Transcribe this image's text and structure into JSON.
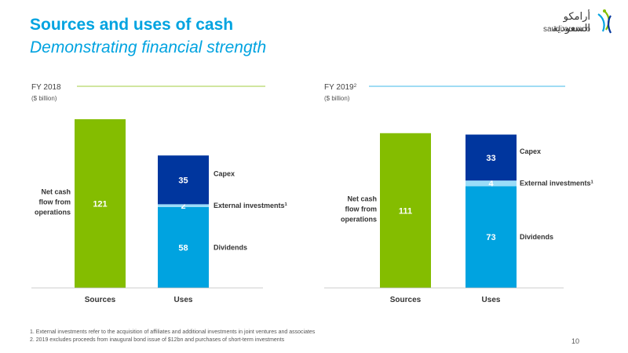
{
  "header": {
    "title": "Sources and uses of cash",
    "subtitle": "Demonstrating financial strength"
  },
  "logo": {
    "arabic": "أرامكو السعودية",
    "english": "saudi aramco"
  },
  "colors": {
    "sources": "#84bd00",
    "capex": "#00369e",
    "external": "#9adcf8",
    "dividends": "#00a3e0",
    "title": "#00a3e0",
    "green_line": "#84bd00",
    "blue_line": "#00a3e0"
  },
  "chart_data": [
    {
      "type": "bar",
      "stacked": true,
      "title": "FY 2018",
      "title_sup": "",
      "unit": "($ billion)",
      "categories": [
        "Sources",
        "Uses"
      ],
      "sources_label": "Net cash flow from operations",
      "sources_label_lines": [
        "Net cash",
        "flow from",
        "operations"
      ],
      "sources": [
        {
          "name": "Net cash flow from operations",
          "value": 121,
          "color_key": "sources"
        }
      ],
      "uses": [
        {
          "name": "Dividends",
          "value": 58,
          "color_key": "dividends",
          "sup": "",
          "label_color": "#ffffff"
        },
        {
          "name": "External investments",
          "value": 2,
          "color_key": "external",
          "sup": "1",
          "label_color": "#ffffff"
        },
        {
          "name": "Capex",
          "value": 35,
          "color_key": "capex",
          "sup": "",
          "label_color": "#ffffff"
        }
      ]
    },
    {
      "type": "bar",
      "stacked": true,
      "title": "FY 2019",
      "title_sup": "2",
      "unit": "($ billion)",
      "categories": [
        "Sources",
        "Uses"
      ],
      "sources_label": "Net cash flow from operations",
      "sources_label_lines": [
        "Net cash",
        "flow from",
        "operations"
      ],
      "sources": [
        {
          "name": "Net cash flow from operations",
          "value": 111,
          "color_key": "sources"
        }
      ],
      "uses": [
        {
          "name": "Dividends",
          "value": 73,
          "color_key": "dividends",
          "sup": "",
          "label_color": "#ffffff"
        },
        {
          "name": "External investments",
          "value": 4,
          "color_key": "external",
          "sup": "1",
          "label_color": "#ffffff"
        },
        {
          "name": "Capex",
          "value": 33,
          "color_key": "capex",
          "sup": "",
          "label_color": "#ffffff"
        }
      ]
    }
  ],
  "footnotes": {
    "note1": "1.   External investments refer to the acquisition of affiliates and additional investments in joint ventures and associates",
    "note2": "2.   2019 excludes proceeds from inaugural bond issue of $12bn and purchases of short-term investments"
  },
  "page_number": "10"
}
